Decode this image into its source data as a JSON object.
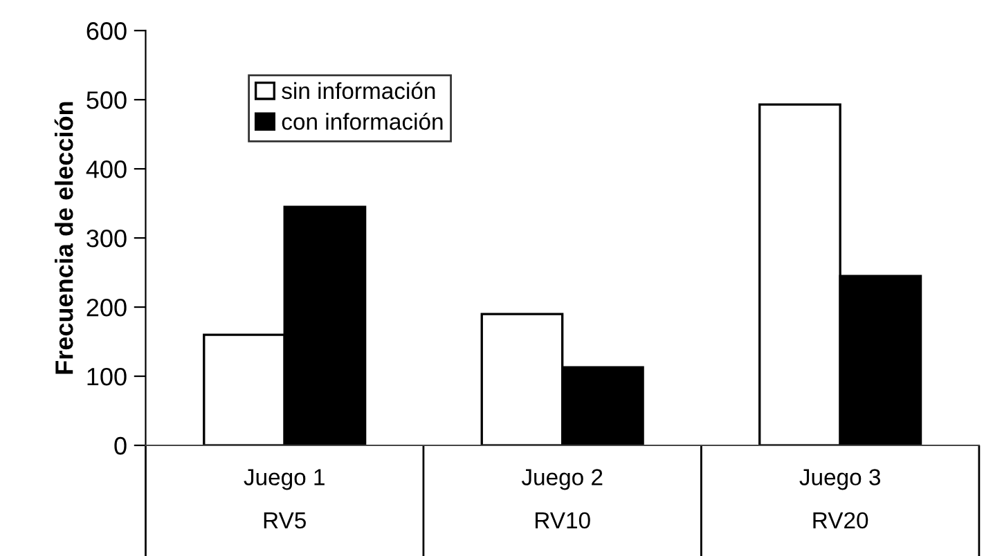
{
  "chart_data": {
    "type": "bar",
    "ylabel": "Frecuencia de elección",
    "categories": [
      "Juego 1\nRV5",
      "Juego 2\nRV10",
      "Juego 3\nRV20"
    ],
    "series": [
      {
        "name": "sin información",
        "color": "#ffffff",
        "values": [
          160,
          190,
          493
        ]
      },
      {
        "name": "con información",
        "color": "#000000",
        "values": [
          345,
          113,
          245
        ]
      }
    ],
    "ylim": [
      0,
      600
    ],
    "yticks": [
      0,
      100,
      200,
      300,
      400,
      500,
      600
    ],
    "grid": false,
    "legend": "top left"
  }
}
